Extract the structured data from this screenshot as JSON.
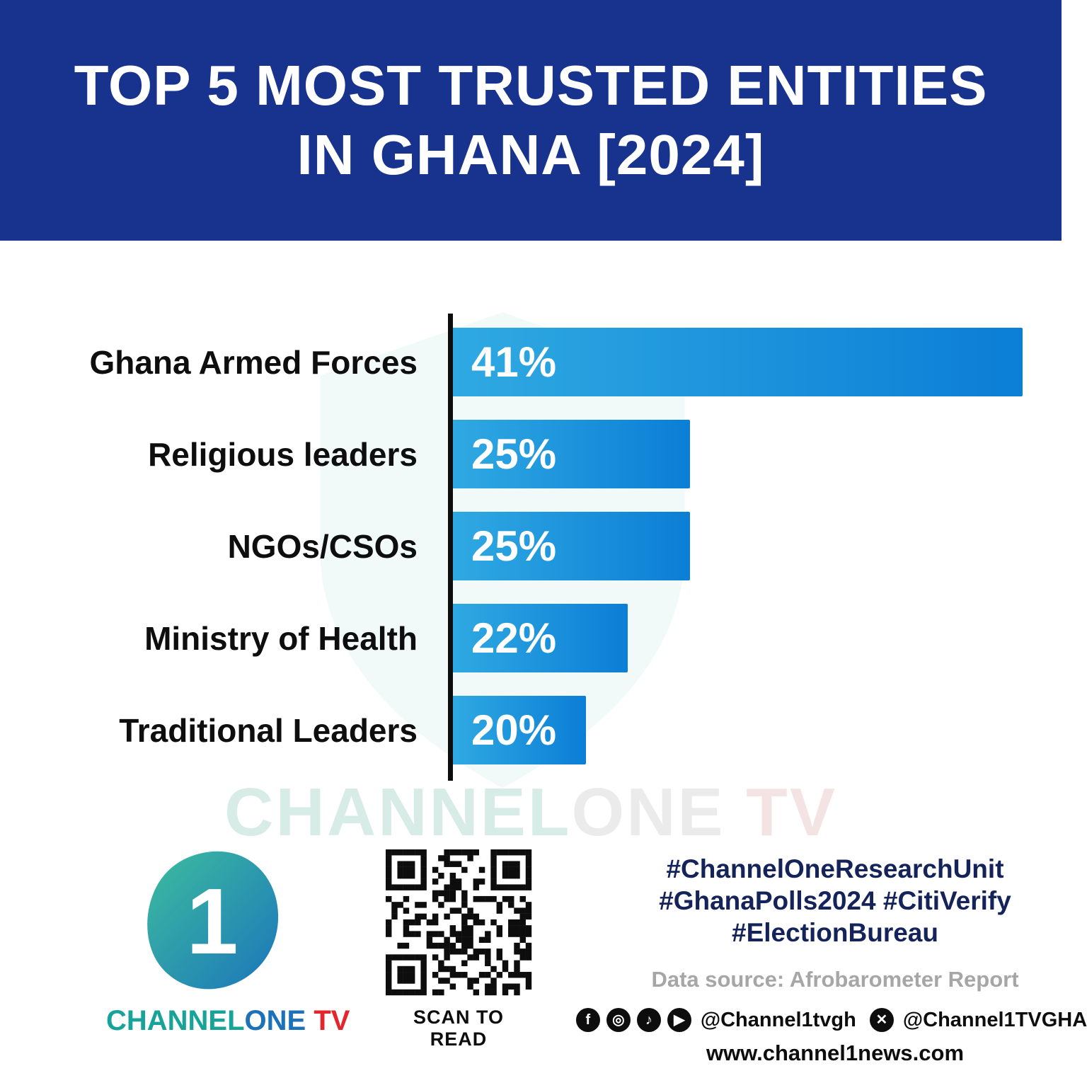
{
  "header": {
    "title_line1": "TOP 5 MOST TRUSTED ENTITIES",
    "title_line2": "IN GHANA [2024]"
  },
  "chart_data": {
    "type": "bar",
    "orientation": "horizontal",
    "title": "Top 5 Most Trusted Entities in Ghana [2024]",
    "categories": [
      "Ghana Armed Forces",
      "Religious leaders",
      "NGOs/CSOs",
      "Ministry of Health",
      "Traditional Leaders"
    ],
    "values": [
      41,
      25,
      25,
      22,
      20
    ],
    "value_labels": [
      "41%",
      "25%",
      "25%",
      "22%",
      "20%"
    ],
    "xlabel": "",
    "ylabel": "",
    "xlim": [
      13.6,
      41
    ],
    "visual_baseline": 13.6,
    "grid": false,
    "legend": false,
    "bar_color_start": "#2FA9E2",
    "bar_color_end": "#0B7ED6"
  },
  "watermark": {
    "channel": "CHANNEL",
    "one": "ONE",
    "tv": " TV"
  },
  "footer": {
    "brand": {
      "channel": "CHANNEL",
      "one": "ONE",
      "tv": " TV",
      "one_numeral": "1"
    },
    "qr_caption": "SCAN TO READ",
    "hashtags_line1": "#ChannelOneResearchUnit",
    "hashtags_line2": "#GhanaPolls2024 #CitiVerify",
    "hashtags_line3": "#ElectionBureau",
    "data_source": "Data source: Afrobarometer Report",
    "social_handle_1": "@Channel1tvgh",
    "social_handle_2": "@Channel1TVGHA",
    "website": "www.channel1news.com",
    "icons": [
      "facebook-icon",
      "instagram-icon",
      "tiktok-icon",
      "youtube-icon",
      "x-icon"
    ]
  },
  "colors": {
    "header_bg": "#17338D",
    "axis": "#0d0d0d",
    "hashtag_navy": "#15235B",
    "brand_teal": "#17A398",
    "brand_blue": "#1D71B8",
    "brand_red": "#E4262C",
    "source_gray": "#A6A6A6"
  }
}
